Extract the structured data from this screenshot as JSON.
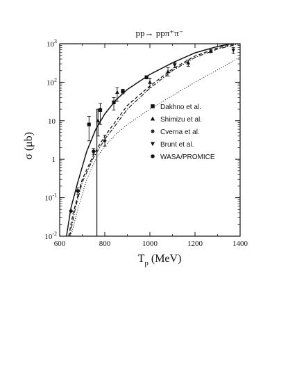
{
  "chart_data": {
    "type": "scatter",
    "title": "pp→ ppπ⁺π⁻",
    "xlabel": "T",
    "xlabel_sub": "p",
    "xlabel_unit": "(MeV)",
    "ylabel": "σ (μb)",
    "xlim": [
      600,
      1400
    ],
    "ylim": [
      0.01,
      1000
    ],
    "yscale": "log",
    "x_ticks": [
      600,
      800,
      1000,
      1200,
      1400
    ],
    "x_tick_labels": [
      "600",
      "800",
      "1000",
      "1200",
      "1400"
    ],
    "y_ticks": [
      {
        "value": 0.01,
        "base": "10",
        "exp": "-2"
      },
      {
        "value": 0.1,
        "base": "10",
        "exp": "-1"
      },
      {
        "value": 1,
        "base": "1",
        "exp": ""
      },
      {
        "value": 10,
        "base": "10",
        "exp": ""
      },
      {
        "value": 100,
        "base": "10",
        "exp": "2"
      },
      {
        "value": 1000,
        "base": "10",
        "exp": "3"
      }
    ],
    "vertical_line_x": 765,
    "legend_position": "right",
    "series": [
      {
        "name": "Dakhno et al.",
        "marker": "square",
        "points": [
          {
            "x": 730,
            "y": 8,
            "lo": 3,
            "hi": 13
          },
          {
            "x": 780,
            "y": 19,
            "lo": 8,
            "hi": 28
          },
          {
            "x": 840,
            "y": 30,
            "lo": 19,
            "hi": 40
          },
          {
            "x": 880,
            "y": 58,
            "lo": 50,
            "hi": 66
          },
          {
            "x": 985,
            "y": 135,
            "lo": 122,
            "hi": 148
          }
        ]
      },
      {
        "name": "Shimizu et al.",
        "marker": "triangle-up",
        "points": [
          {
            "x": 770,
            "y": 10,
            "lo": 4,
            "hi": 20
          },
          {
            "x": 855,
            "y": 55,
            "lo": 32,
            "hi": 72
          },
          {
            "x": 1000,
            "y": 100,
            "lo": 72,
            "hi": 128
          },
          {
            "x": 1080,
            "y": 190,
            "lo": 145,
            "hi": 240
          },
          {
            "x": 1170,
            "y": 320,
            "lo": 260,
            "hi": 380
          },
          {
            "x": 1270,
            "y": 640,
            "lo": 590,
            "hi": 700
          }
        ]
      },
      {
        "name": "Cverna et al.",
        "marker": "asterisk",
        "points": [
          {
            "x": 800,
            "y": 3,
            "lo": 2.2,
            "hi": 4.2
          }
        ]
      },
      {
        "name": "Brunt et al.",
        "marker": "triangle-down",
        "points": [
          {
            "x": 1110,
            "y": 280,
            "lo": 240,
            "hi": 320
          },
          {
            "x": 1370,
            "y": 680,
            "lo": 560,
            "hi": 800
          }
        ]
      },
      {
        "name": "WASA/PROMICE",
        "marker": "circle",
        "points": [
          {
            "x": 650,
            "y": 0.045
          },
          {
            "x": 680,
            "y": 0.15,
            "lo": 0.12,
            "hi": 0.18
          },
          {
            "x": 750,
            "y": 1.6,
            "lo": 1.35,
            "hi": 1.9
          }
        ]
      }
    ],
    "curves": [
      {
        "style": "solid",
        "points": [
          [
            630,
            0.01
          ],
          [
            650,
            0.055
          ],
          [
            680,
            0.25
          ],
          [
            720,
            1.6
          ],
          [
            760,
            6
          ],
          [
            800,
            15
          ],
          [
            850,
            35
          ],
          [
            900,
            65
          ],
          [
            1000,
            160
          ],
          [
            1100,
            320
          ],
          [
            1200,
            580
          ],
          [
            1300,
            850
          ],
          [
            1360,
            1000
          ]
        ]
      },
      {
        "style": "dashed",
        "points": [
          [
            640,
            0.01
          ],
          [
            660,
            0.04
          ],
          [
            700,
            0.3
          ],
          [
            750,
            1.3
          ],
          [
            800,
            4
          ],
          [
            850,
            10
          ],
          [
            900,
            25
          ],
          [
            1000,
            80
          ],
          [
            1100,
            220
          ],
          [
            1200,
            480
          ],
          [
            1300,
            780
          ],
          [
            1380,
            1000
          ]
        ]
      },
      {
        "style": "dash-dot",
        "points": [
          [
            645,
            0.01
          ],
          [
            670,
            0.055
          ],
          [
            700,
            0.25
          ],
          [
            750,
            1.1
          ],
          [
            800,
            3.3
          ],
          [
            850,
            8
          ],
          [
            900,
            20
          ],
          [
            1000,
            70
          ],
          [
            1100,
            200
          ],
          [
            1200,
            440
          ],
          [
            1300,
            730
          ],
          [
            1400,
            1000
          ]
        ]
      },
      {
        "style": "dotted",
        "points": [
          [
            650,
            0.01
          ],
          [
            680,
            0.05
          ],
          [
            720,
            0.3
          ],
          [
            760,
            1
          ],
          [
            800,
            2.2
          ],
          [
            850,
            4.5
          ],
          [
            900,
            8
          ],
          [
            1000,
            20
          ],
          [
            1100,
            45
          ],
          [
            1200,
            100
          ],
          [
            1300,
            210
          ],
          [
            1400,
            450
          ]
        ]
      }
    ]
  }
}
